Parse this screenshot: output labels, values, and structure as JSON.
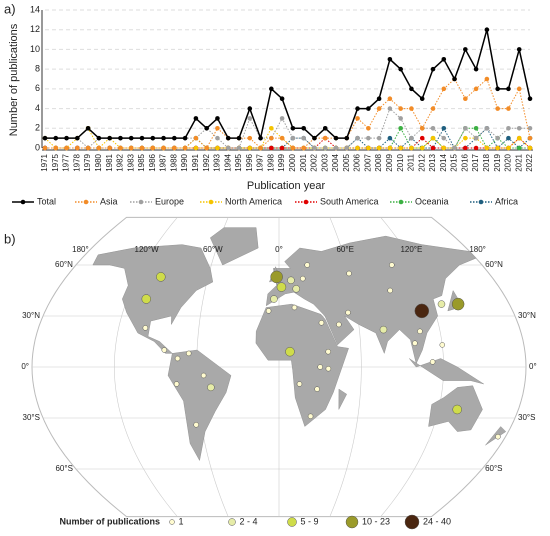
{
  "chart_data": {
    "type": "line",
    "panel": "a)",
    "xlabel": "Publication year",
    "ylabel": "Number of publications",
    "categories": [
      "1971",
      "1975",
      "1977",
      "1978",
      "1979",
      "1980",
      "1981",
      "1982",
      "1983",
      "1985",
      "1986",
      "1987",
      "1988",
      "1990",
      "1991",
      "1992",
      "1993",
      "1994",
      "1995",
      "1996",
      "1997",
      "1998",
      "1999",
      "2000",
      "2001",
      "2002",
      "2003",
      "2004",
      "2005",
      "2006",
      "2007",
      "2008",
      "2009",
      "2010",
      "2011",
      "2012",
      "2013",
      "2014",
      "2015",
      "2016",
      "2017",
      "2018",
      "2019",
      "2020",
      "2021",
      "2022"
    ],
    "ylim": [
      0,
      14
    ],
    "yticks": [
      0,
      2,
      4,
      6,
      8,
      10,
      12,
      14
    ],
    "grid": true,
    "series": [
      {
        "name": "Total",
        "color": "#000000",
        "dash": "solid",
        "values": [
          1,
          1,
          1,
          1,
          2,
          1,
          1,
          1,
          1,
          1,
          1,
          1,
          1,
          1,
          3,
          2,
          3,
          1,
          1,
          4,
          1,
          6,
          5,
          2,
          2,
          1,
          2,
          1,
          1,
          4,
          4,
          5,
          9,
          8,
          6,
          5,
          8,
          9,
          7,
          10,
          8,
          12,
          6,
          6,
          10,
          5
        ]
      },
      {
        "name": "Asia",
        "color": "#f28c28",
        "dash": "dotted",
        "values": [
          0,
          0,
          0,
          0,
          0,
          0,
          0,
          0,
          0,
          0,
          0,
          0,
          0,
          0,
          1,
          0,
          2,
          1,
          1,
          1,
          0,
          1,
          1,
          0,
          0,
          1,
          1,
          1,
          1,
          3,
          2,
          4,
          5,
          4,
          4,
          2,
          4,
          6,
          7,
          5,
          6,
          7,
          4,
          4,
          6,
          1
        ]
      },
      {
        "name": "Europe",
        "color": "#a0a0a0",
        "dash": "dotted",
        "values": [
          1,
          1,
          1,
          1,
          0,
          1,
          1,
          1,
          1,
          1,
          1,
          1,
          1,
          1,
          1,
          2,
          1,
          0,
          0,
          3,
          1,
          1,
          3,
          1,
          1,
          0,
          0,
          0,
          0,
          1,
          1,
          1,
          4,
          3,
          1,
          2,
          2,
          1,
          0,
          2,
          1,
          2,
          1,
          2,
          2,
          2
        ]
      },
      {
        "name": "North America",
        "color": "#f5c400",
        "dash": "dotted",
        "values": [
          1,
          0,
          0,
          1,
          2,
          0,
          1,
          0,
          0,
          0,
          0,
          0,
          0,
          0,
          0,
          0,
          0,
          0,
          0,
          0,
          0,
          2,
          1,
          0,
          0,
          0,
          0,
          0,
          0,
          0,
          0,
          0,
          0,
          0,
          0,
          0,
          1,
          0,
          0,
          1,
          1,
          0,
          0,
          0,
          1,
          0
        ]
      },
      {
        "name": "South America",
        "color": "#e00000",
        "dash": "dotted",
        "values": [
          0,
          0,
          0,
          0,
          0,
          0,
          0,
          0,
          0,
          0,
          0,
          0,
          0,
          0,
          0,
          0,
          0,
          0,
          0,
          0,
          0,
          0,
          0,
          0,
          0,
          0,
          1,
          0,
          0,
          0,
          0,
          0,
          0,
          0,
          0,
          1,
          0,
          0,
          0,
          0,
          0,
          0,
          0,
          0,
          1,
          0
        ]
      },
      {
        "name": "Oceania",
        "color": "#3cb043",
        "dash": "dotted",
        "values": [
          0,
          0,
          0,
          0,
          0,
          0,
          0,
          0,
          0,
          0,
          0,
          0,
          0,
          0,
          1,
          0,
          0,
          0,
          0,
          0,
          0,
          0,
          0,
          0,
          0,
          0,
          0,
          0,
          0,
          0,
          0,
          0,
          0,
          2,
          0,
          0,
          1,
          0,
          0,
          2,
          2,
          0,
          1,
          0,
          0,
          0
        ]
      },
      {
        "name": "Africa",
        "color": "#1f5f7f",
        "dash": "dotted",
        "values": [
          0,
          0,
          0,
          0,
          0,
          0,
          0,
          0,
          0,
          0,
          0,
          0,
          0,
          0,
          0,
          0,
          0,
          0,
          0,
          0,
          0,
          0,
          0,
          1,
          1,
          0,
          0,
          0,
          0,
          1,
          0,
          0,
          1,
          0,
          1,
          0,
          0,
          2,
          0,
          0,
          1,
          2,
          0,
          1,
          0,
          1
        ]
      }
    ]
  },
  "map": {
    "panel": "b)",
    "legend_title": "Number of publications",
    "legend": [
      {
        "label": "1",
        "color": "#fffbd0",
        "r": 2.5
      },
      {
        "label": "2 - 4",
        "color": "#e6eca8",
        "r": 3.5
      },
      {
        "label": "5 - 9",
        "color": "#cfdc4a",
        "r": 4.5
      },
      {
        "label": "10 - 23",
        "color": "#9a9a2a",
        "r": 6
      },
      {
        "label": "24 - 40",
        "color": "#4a2610",
        "r": 7
      }
    ],
    "lon_labels": [
      {
        "lon": -180,
        "label": "180°"
      },
      {
        "lon": -120,
        "label": "120°W"
      },
      {
        "lon": -60,
        "label": "60°W"
      },
      {
        "lon": 0,
        "label": "0°"
      },
      {
        "lon": 60,
        "label": "60°E"
      },
      {
        "lon": 120,
        "label": "120°E"
      },
      {
        "lon": 180,
        "label": "180°"
      }
    ],
    "lat_labels": [
      {
        "lat": 60,
        "label": "60°N"
      },
      {
        "lat": 30,
        "label": "30°N"
      },
      {
        "lat": 0,
        "label": "0°"
      },
      {
        "lat": -30,
        "label": "30°S"
      },
      {
        "lat": -60,
        "label": "60°S"
      }
    ],
    "points": [
      [
        110,
        33,
        4
      ],
      [
        140,
        37,
        3
      ],
      [
        127,
        37,
        1
      ],
      [
        -105,
        40,
        2
      ],
      [
        -100,
        53,
        2
      ],
      [
        -2,
        53,
        3
      ],
      [
        2,
        47,
        2
      ],
      [
        10,
        51,
        1
      ],
      [
        14,
        46,
        1
      ],
      [
        -4,
        40,
        1
      ],
      [
        20,
        52,
        0
      ],
      [
        25,
        60,
        0
      ],
      [
        8,
        9,
        2
      ],
      [
        30,
        0,
        0
      ],
      [
        36,
        -1,
        0
      ],
      [
        24,
        -29,
        0
      ],
      [
        28,
        -13,
        0
      ],
      [
        32,
        26,
        0
      ],
      [
        45,
        25,
        0
      ],
      [
        53,
        32,
        0
      ],
      [
        78,
        22,
        1
      ],
      [
        100,
        14,
        0
      ],
      [
        105,
        21,
        0
      ],
      [
        112,
        3,
        0
      ],
      [
        120,
        13,
        0
      ],
      [
        134,
        -25,
        2
      ],
      [
        174,
        -41,
        0
      ],
      [
        -50,
        -12,
        1
      ],
      [
        -64,
        -34,
        0
      ],
      [
        -75,
        -10,
        0
      ],
      [
        -74,
        5,
        0
      ],
      [
        -66,
        8,
        0
      ],
      [
        -100,
        23,
        0
      ],
      [
        -84,
        10,
        0
      ],
      [
        -55,
        -5,
        0
      ],
      [
        36,
        9,
        0
      ],
      [
        15,
        -10,
        0
      ],
      [
        -8,
        33,
        0
      ],
      [
        12,
        35,
        0
      ],
      [
        100,
        60,
        0
      ],
      [
        60,
        55,
        0
      ],
      [
        90,
        45,
        0
      ]
    ]
  }
}
